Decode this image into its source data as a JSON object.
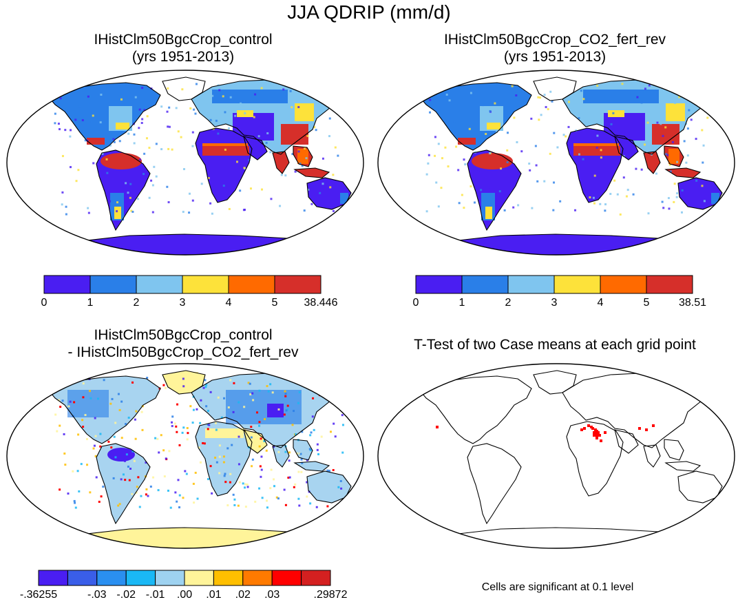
{
  "title": "JJA QDRIP (mm/d)",
  "panels": [
    {
      "id": "control",
      "title_line1": "IHistClm50BgcCrop_control",
      "title_line2": "(yrs 1951-2013)",
      "colorbar": {
        "colors": [
          "#4a1ef2",
          "#2a7fe8",
          "#7fc5ef",
          "#fde23a",
          "#ff6a00",
          "#d62f2a"
        ],
        "labels": [
          "0",
          "1",
          "2",
          "3",
          "4",
          "5",
          "38.446"
        ]
      }
    },
    {
      "id": "co2-fert-rev",
      "title_line1": "IHistClm50BgcCrop_CO2_fert_rev",
      "title_line2": "(yrs 1951-2013)",
      "colorbar": {
        "colors": [
          "#4a1ef2",
          "#2a7fe8",
          "#7fc5ef",
          "#fde23a",
          "#ff6a00",
          "#d62f2a"
        ],
        "labels": [
          "0",
          "1",
          "2",
          "3",
          "4",
          "5",
          "38.51"
        ]
      }
    },
    {
      "id": "difference",
      "title_line1": "IHistClm50BgcCrop_control",
      "title_line2": "- IHistClm50BgcCrop_CO2_fert_rev",
      "colorbar": {
        "colors": [
          "#4a1ef2",
          "#3a5ee8",
          "#2a8ff0",
          "#1ab8f5",
          "#9ed2f0",
          "#fff49a",
          "#ffbf00",
          "#ff7a00",
          "#ff0000",
          "#d42020"
        ],
        "labels": [
          "-.36255",
          "-.03",
          "-.02",
          "-.01",
          ".00",
          ".01",
          ".02",
          ".03",
          ".29872"
        ]
      }
    },
    {
      "id": "ttest",
      "title_line1": "T-Test of two Case means at each grid point",
      "title_line2": "",
      "note": "Cells are significant at 0.1 level"
    }
  ],
  "colors": {
    "land_warm": "#d62f2a",
    "land_orange": "#ff6a00",
    "land_yellow": "#fde23a",
    "land_light": "#7fc5ef",
    "land_mid": "#2a7fe8",
    "land_low": "#4a1ef2",
    "diff_pale": "#a8d4f0",
    "diff_yellow": "#fff49a",
    "significant": "#ff0000"
  }
}
